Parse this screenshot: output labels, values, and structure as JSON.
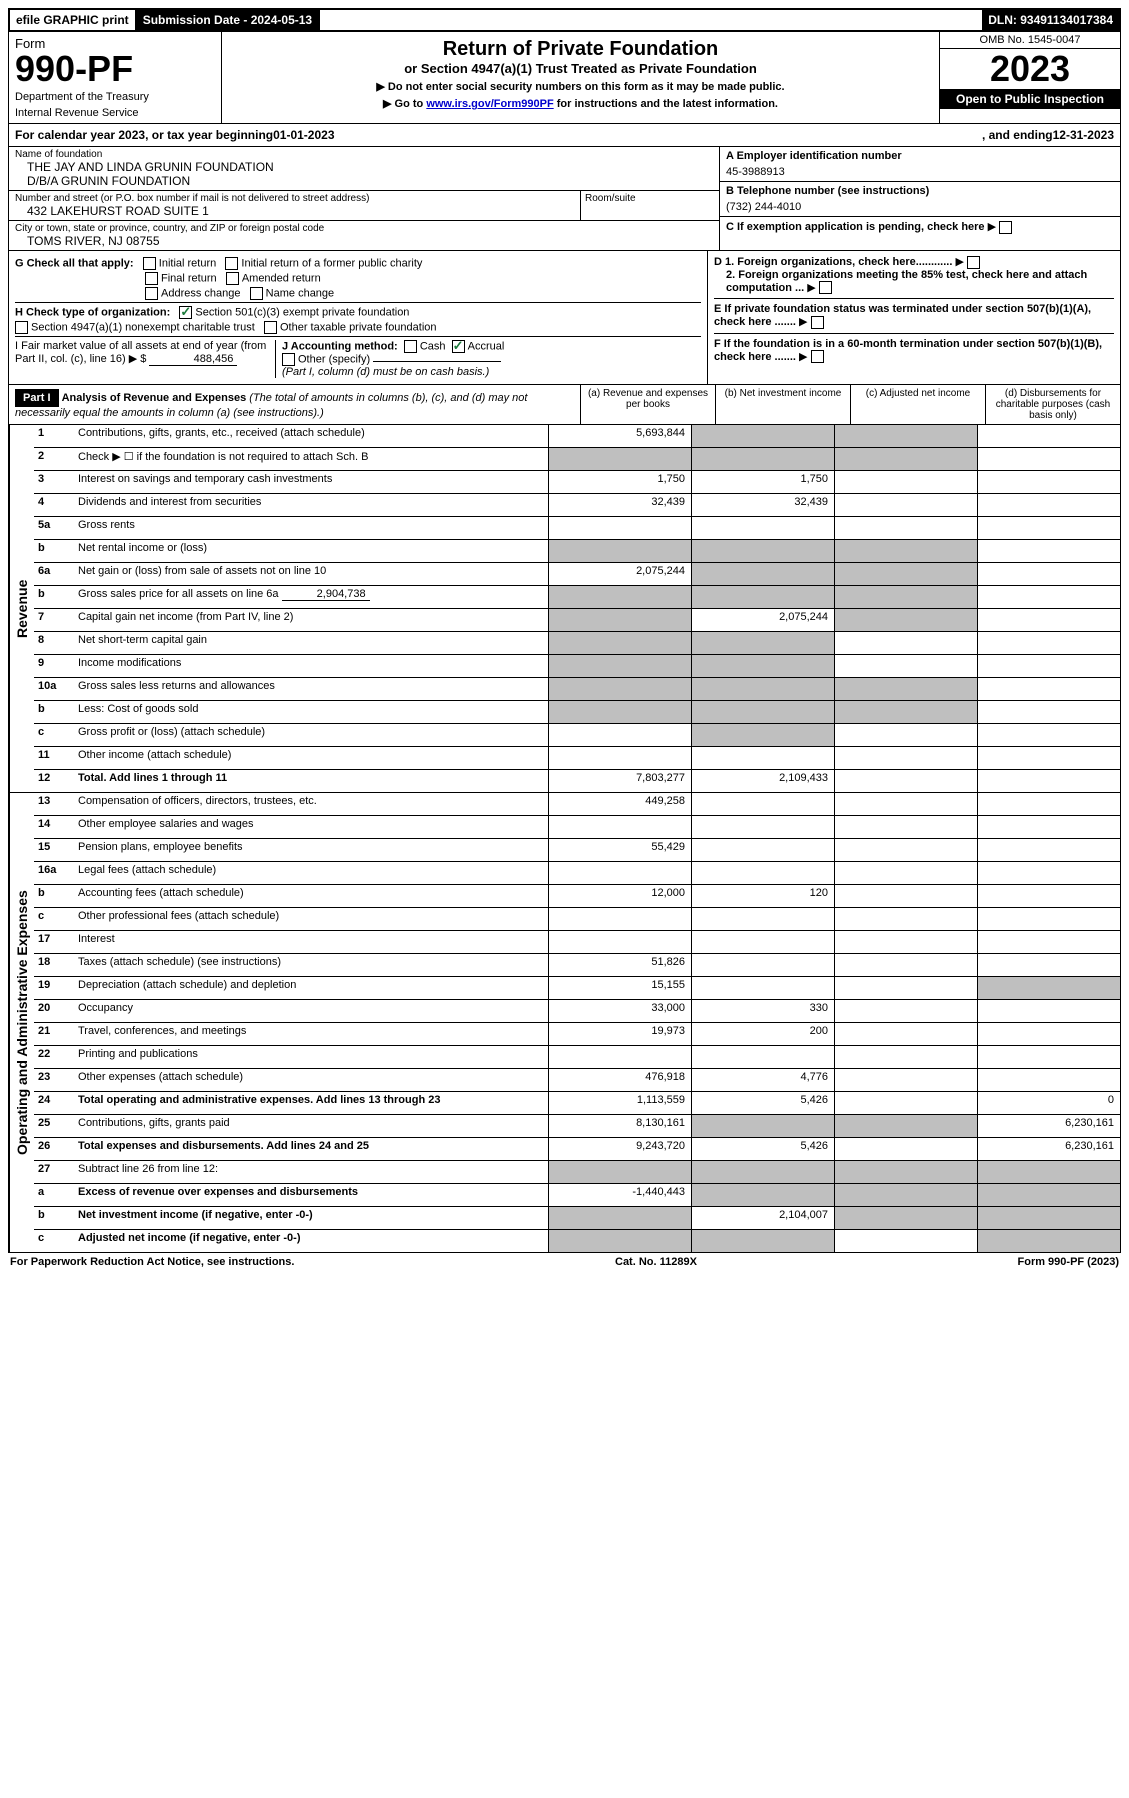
{
  "top": {
    "efile": "efile GRAPHIC print",
    "submission_label": "Submission Date - 2024-05-13",
    "dln": "DLN: 93491134017384"
  },
  "header": {
    "form_word": "Form",
    "form_num": "990-PF",
    "dept": "Department of the Treasury",
    "irs": "Internal Revenue Service",
    "title": "Return of Private Foundation",
    "subtitle": "or Section 4947(a)(1) Trust Treated as Private Foundation",
    "instr1": "▶ Do not enter social security numbers on this form as it may be made public.",
    "instr2_pre": "▶ Go to ",
    "instr2_link": "www.irs.gov/Form990PF",
    "instr2_post": " for instructions and the latest information.",
    "omb": "OMB No. 1545-0047",
    "year": "2023",
    "open": "Open to Public Inspection"
  },
  "cal": {
    "pre": "For calendar year 2023, or tax year beginning ",
    "begin": "01-01-2023",
    "mid": " , and ending ",
    "end": "12-31-2023"
  },
  "entity": {
    "name_label": "Name of foundation",
    "name1": "THE JAY AND LINDA GRUNIN FOUNDATION",
    "name2": "D/B/A GRUNIN FOUNDATION",
    "addr_label": "Number and street (or P.O. box number if mail is not delivered to street address)",
    "addr": "432 LAKEHURST ROAD SUITE 1",
    "room_label": "Room/suite",
    "city_label": "City or town, state or province, country, and ZIP or foreign postal code",
    "city": "TOMS RIVER, NJ  08755",
    "ein_label": "A Employer identification number",
    "ein": "45-3988913",
    "phone_label": "B Telephone number (see instructions)",
    "phone": "(732) 244-4010",
    "c_label": "C If exemption application is pending, check here"
  },
  "checks": {
    "g_label": "G Check all that apply:",
    "g1": "Initial return",
    "g2": "Initial return of a former public charity",
    "g3": "Final return",
    "g4": "Amended return",
    "g5": "Address change",
    "g6": "Name change",
    "h_label": "H Check type of organization:",
    "h1": "Section 501(c)(3) exempt private foundation",
    "h2": "Section 4947(a)(1) nonexempt charitable trust",
    "h3": "Other taxable private foundation",
    "i_label": "I Fair market value of all assets at end of year (from Part II, col. (c), line 16) ▶ $",
    "i_val": "488,456",
    "j_label": "J Accounting method:",
    "j1": "Cash",
    "j2": "Accrual",
    "j3": "Other (specify)",
    "j_note": "(Part I, column (d) must be on cash basis.)",
    "d1": "D 1. Foreign organizations, check here............",
    "d2": "2. Foreign organizations meeting the 85% test, check here and attach computation ...",
    "e": "E  If private foundation status was terminated under section 507(b)(1)(A), check here .......",
    "f": "F  If the foundation is in a 60-month termination under section 507(b)(1)(B), check here ......."
  },
  "part1": {
    "label": "Part I",
    "title": "Analysis of Revenue and Expenses",
    "title_note": " (The total of amounts in columns (b), (c), and (d) may not necessarily equal the amounts in column (a) (see instructions).)",
    "col_a": "(a)   Revenue and expenses per books",
    "col_b": "(b)   Net investment income",
    "col_c": "(c)   Adjusted net income",
    "col_d": "(d)   Disbursements for charitable purposes (cash basis only)"
  },
  "side": {
    "revenue": "Revenue",
    "expenses": "Operating and Administrative Expenses"
  },
  "rows": {
    "r1": {
      "n": "1",
      "d": "Contributions, gifts, grants, etc., received (attach schedule)",
      "a": "5,693,844"
    },
    "r2": {
      "n": "2",
      "d": "Check ▶ ☐ if the foundation is not required to attach Sch. B"
    },
    "r3": {
      "n": "3",
      "d": "Interest on savings and temporary cash investments",
      "a": "1,750",
      "b": "1,750"
    },
    "r4": {
      "n": "4",
      "d": "Dividends and interest from securities",
      "a": "32,439",
      "b": "32,439"
    },
    "r5a": {
      "n": "5a",
      "d": "Gross rents"
    },
    "r5b": {
      "n": "b",
      "d": "Net rental income or (loss)"
    },
    "r6a": {
      "n": "6a",
      "d": "Net gain or (loss) from sale of assets not on line 10",
      "a": "2,075,244"
    },
    "r6b": {
      "n": "b",
      "d": "Gross sales price for all assets on line 6a",
      "inline": "2,904,738"
    },
    "r7": {
      "n": "7",
      "d": "Capital gain net income (from Part IV, line 2)",
      "b": "2,075,244"
    },
    "r8": {
      "n": "8",
      "d": "Net short-term capital gain"
    },
    "r9": {
      "n": "9",
      "d": "Income modifications"
    },
    "r10a": {
      "n": "10a",
      "d": "Gross sales less returns and allowances"
    },
    "r10b": {
      "n": "b",
      "d": "Less: Cost of goods sold"
    },
    "r10c": {
      "n": "c",
      "d": "Gross profit or (loss) (attach schedule)"
    },
    "r11": {
      "n": "11",
      "d": "Other income (attach schedule)"
    },
    "r12": {
      "n": "12",
      "d": "Total. Add lines 1 through 11",
      "a": "7,803,277",
      "b": "2,109,433",
      "bold": true
    },
    "r13": {
      "n": "13",
      "d": "Compensation of officers, directors, trustees, etc.",
      "a": "449,258"
    },
    "r14": {
      "n": "14",
      "d": "Other employee salaries and wages"
    },
    "r15": {
      "n": "15",
      "d": "Pension plans, employee benefits",
      "a": "55,429"
    },
    "r16a": {
      "n": "16a",
      "d": "Legal fees (attach schedule)"
    },
    "r16b": {
      "n": "b",
      "d": "Accounting fees (attach schedule)",
      "a": "12,000",
      "b": "120"
    },
    "r16c": {
      "n": "c",
      "d": "Other professional fees (attach schedule)"
    },
    "r17": {
      "n": "17",
      "d": "Interest"
    },
    "r18": {
      "n": "18",
      "d": "Taxes (attach schedule) (see instructions)",
      "a": "51,826"
    },
    "r19": {
      "n": "19",
      "d": "Depreciation (attach schedule) and depletion",
      "a": "15,155"
    },
    "r20": {
      "n": "20",
      "d": "Occupancy",
      "a": "33,000",
      "b": "330"
    },
    "r21": {
      "n": "21",
      "d": "Travel, conferences, and meetings",
      "a": "19,973",
      "b": "200"
    },
    "r22": {
      "n": "22",
      "d": "Printing and publications"
    },
    "r23": {
      "n": "23",
      "d": "Other expenses (attach schedule)",
      "a": "476,918",
      "b": "4,776"
    },
    "r24": {
      "n": "24",
      "d": "Total operating and administrative expenses. Add lines 13 through 23",
      "a": "1,113,559",
      "b": "5,426",
      "dd": "0",
      "bold": true
    },
    "r25": {
      "n": "25",
      "d": "Contributions, gifts, grants paid",
      "a": "8,130,161",
      "dd": "6,230,161"
    },
    "r26": {
      "n": "26",
      "d": "Total expenses and disbursements. Add lines 24 and 25",
      "a": "9,243,720",
      "b": "5,426",
      "dd": "6,230,161",
      "bold": true
    },
    "r27": {
      "n": "27",
      "d": "Subtract line 26 from line 12:"
    },
    "r27a": {
      "n": "a",
      "d": "Excess of revenue over expenses and disbursements",
      "a": "-1,440,443",
      "bold": true
    },
    "r27b": {
      "n": "b",
      "d": "Net investment income (if negative, enter -0-)",
      "b": "2,104,007",
      "bold": true
    },
    "r27c": {
      "n": "c",
      "d": "Adjusted net income (if negative, enter -0-)",
      "bold": true
    }
  },
  "footer": {
    "left": "For Paperwork Reduction Act Notice, see instructions.",
    "mid": "Cat. No. 11289X",
    "right": "Form 990-PF (2023)"
  }
}
